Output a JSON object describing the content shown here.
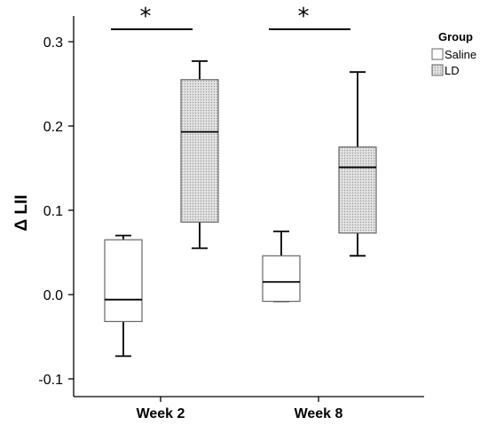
{
  "chart_data": {
    "type": "box",
    "ylabel": "Δ LII",
    "xlabel": "",
    "ylim": [
      -0.11,
      0.335
    ],
    "yticks": [
      "0.3",
      "0.2",
      "0.1",
      "0.0",
      "-0.1"
    ],
    "ytick_values": [
      0.3,
      0.2,
      0.1,
      0.0,
      -0.1
    ],
    "categories": [
      "Week 2",
      "Week 8"
    ],
    "legend": {
      "title": "Group",
      "placement": "top-right",
      "entries": [
        "Saline",
        "LD"
      ]
    },
    "series": [
      {
        "name": "Saline",
        "fill": "#ffffff",
        "boxes": [
          {
            "category": "Week 2",
            "min": -0.073,
            "q1": -0.032,
            "median": -0.006,
            "q3": 0.065,
            "max": 0.07
          },
          {
            "category": "Week 8",
            "min": -0.008,
            "q1": -0.008,
            "median": 0.015,
            "q3": 0.046,
            "max": 0.075
          }
        ]
      },
      {
        "name": "LD",
        "fill": "#d9d9d9",
        "boxes": [
          {
            "category": "Week 2",
            "min": 0.055,
            "q1": 0.086,
            "median": 0.193,
            "q3": 0.255,
            "max": 0.277
          },
          {
            "category": "Week 8",
            "min": 0.046,
            "q1": 0.073,
            "median": 0.151,
            "q3": 0.175,
            "max": 0.264
          }
        ]
      }
    ],
    "annotations": [
      {
        "category": "Week 2",
        "text": "*"
      },
      {
        "category": "Week 8",
        "text": "*"
      }
    ]
  }
}
